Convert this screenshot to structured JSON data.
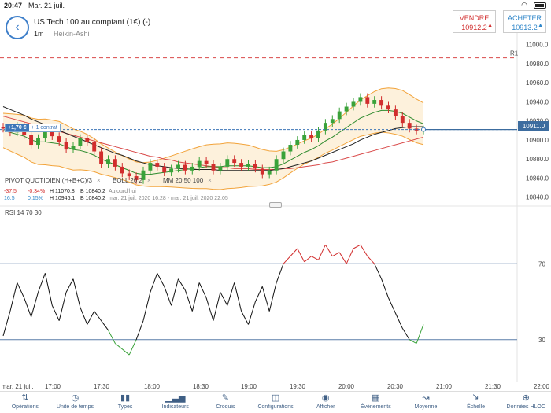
{
  "status": {
    "time": "20:47",
    "date": "Mar. 21 juil."
  },
  "header": {
    "back_icon": "back-arrow-icon",
    "title": "US Tech 100 au comptant (1€) (-)",
    "interval": "1m",
    "chart_type": "Heikin-Ashi",
    "sell": {
      "label": "VENDRE",
      "price": "10912.2"
    },
    "buy": {
      "label": "ACHETER",
      "price": "10913.2"
    }
  },
  "position": {
    "pnl": "+1,70 €",
    "qty": "+ 1 contrat"
  },
  "current_price": "10911.0",
  "r1_label": "R1",
  "indicators": {
    "pivot": "PIVOT  QUOTIDIEN  (H+B+C)/3",
    "boll": "BOLL  20  2",
    "mm": "MM  20  50  100",
    "close": "×"
  },
  "pivot_values": {
    "row1": {
      "chg": "-37.5",
      "pct": "-0.34%",
      "h": "H 11070.8",
      "b": "B 10840.2",
      "period": "Aujourd'hui"
    },
    "row2": {
      "chg": "16.5",
      "pct": "0.15%",
      "h": "H 10946.1",
      "b": "B 10840.2",
      "period": "mar. 21 juil. 2020 16:28 - mar. 21 juil. 2020 22:05"
    }
  },
  "rsi_label": "RSI  14  70  30",
  "colors": {
    "accent": "#3d7ec9",
    "up": "#3aa23a",
    "down": "#d12d2d",
    "ma20": "#2e8b2e",
    "ma50": "#222222",
    "ma100": "#d94a4a",
    "boll": "#f2a33a"
  },
  "chart_data": {
    "type": "candlestick",
    "price_axis": {
      "labels": [
        "11000.0",
        "10980.0",
        "10960.0",
        "10940.0",
        "10920.0",
        "10900.0",
        "10880.0",
        "10860.0",
        "10840.0"
      ],
      "ylim": [
        10834,
        11008
      ]
    },
    "r1_level": 10986,
    "position_level": 10911.0,
    "rsi_axis": {
      "labels": [
        "70",
        "30"
      ],
      "upper": 70,
      "lower": 30,
      "ylim": [
        10,
        95
      ]
    },
    "time_axis": {
      "labels": [
        "mar. 21 juil.",
        "17:00",
        "17:30",
        "18:00",
        "18:30",
        "19:00",
        "19:30",
        "20:00",
        "20:30",
        "21:00",
        "21:30",
        "22:00"
      ]
    },
    "price_series": [
      10912,
      10908,
      10915,
      10905,
      10895,
      10902,
      10910,
      10904,
      10898,
      10890,
      10894,
      10902,
      10898,
      10888,
      10875,
      10880,
      10872,
      10865,
      10862,
      10858,
      10868,
      10876,
      10872,
      10866,
      10870,
      10874,
      10868,
      10872,
      10878,
      10875,
      10868,
      10872,
      10880,
      10876,
      10872,
      10875,
      10870,
      10864,
      10868,
      10880,
      10888,
      10895,
      10900,
      10905,
      10902,
      10910,
      10918,
      10922,
      10930,
      10935,
      10940,
      10945,
      10938,
      10942,
      10936,
      10932,
      10925,
      10918,
      10912,
      10910,
      10911
    ],
    "ma20": [
      10910,
      10908,
      10906,
      10904,
      10900,
      10898,
      10898,
      10897,
      10896,
      10893,
      10890,
      10889,
      10887,
      10884,
      10880,
      10877,
      10874,
      10871,
      10868,
      10865,
      10864,
      10864,
      10865,
      10866,
      10867,
      10868,
      10869,
      10870,
      10871,
      10872,
      10872,
      10872,
      10873,
      10873,
      10873,
      10873,
      10872,
      10871,
      10871,
      10872,
      10875,
      10879,
      10883,
      10887,
      10890,
      10894,
      10899,
      10903,
      10908,
      10913,
      10918,
      10923,
      10926,
      10929,
      10931,
      10931,
      10930,
      10928,
      10924,
      10920,
      10917
    ],
    "ma50": [
      10935,
      10932,
      10929,
      10926,
      10922,
      10919,
      10916,
      10913,
      10910,
      10907,
      10904,
      10901,
      10898,
      10895,
      10892,
      10889,
      10886,
      10884,
      10881,
      10878,
      10876,
      10874,
      10873,
      10872,
      10871,
      10870,
      10870,
      10869,
      10869,
      10869,
      10869,
      10868,
      10868,
      10868,
      10868,
      10868,
      10868,
      10868,
      10868,
      10869,
      10870,
      10872,
      10874,
      10876,
      10878,
      10881,
      10884,
      10887,
      10890,
      10893,
      10896,
      10900,
      10903,
      10906,
      10908,
      10910,
      10912,
      10913,
      10914,
      10914,
      10914
    ],
    "ma100": [
      10925,
      10923,
      10921,
      10919,
      10917,
      10915,
      10913,
      10911,
      10909,
      10907,
      10905,
      10903,
      10901,
      10899,
      10897,
      10895,
      10893,
      10891,
      10889,
      10887,
      10885,
      10883,
      10882,
      10880,
      10879,
      10877,
      10876,
      10875,
      10874,
      10873,
      10872,
      10871,
      10871,
      10870,
      10870,
      10870,
      10869,
      10869,
      10869,
      10869,
      10870,
      10870,
      10871,
      10872,
      10873,
      10874,
      10876,
      10877,
      10879,
      10881,
      10883,
      10885,
      10887,
      10889,
      10891,
      10893,
      10895,
      10897,
      10899,
      10901,
      10903
    ],
    "rsi_series": [
      32,
      45,
      60,
      52,
      42,
      55,
      65,
      48,
      40,
      55,
      62,
      47,
      38,
      45,
      40,
      35,
      28,
      25,
      22,
      30,
      40,
      55,
      65,
      58,
      48,
      62,
      56,
      45,
      60,
      52,
      40,
      55,
      48,
      60,
      45,
      38,
      50,
      58,
      45,
      60,
      70,
      74,
      78,
      71,
      74,
      72,
      80,
      74,
      76,
      70,
      78,
      80,
      74,
      70,
      62,
      52,
      44,
      36,
      30,
      28,
      38
    ]
  },
  "toolbar": [
    {
      "label": "Opérations",
      "icon": "arrows-updown-icon"
    },
    {
      "label": "Unité de temps",
      "icon": "clock-icon"
    },
    {
      "label": "Types",
      "icon": "candles-icon"
    },
    {
      "label": "Indicateurs",
      "icon": "bars-icon"
    },
    {
      "label": "Croquis",
      "icon": "pencil-icon"
    },
    {
      "label": "Configurations",
      "icon": "layout-icon"
    },
    {
      "label": "Afficher",
      "icon": "eye-icon"
    },
    {
      "label": "Événements",
      "icon": "calendar-icon"
    },
    {
      "label": "Moyenne",
      "icon": "average-icon"
    },
    {
      "label": "Échelle",
      "icon": "scale-icon"
    },
    {
      "label": "Données HLOC",
      "icon": "crosshair-icon"
    }
  ]
}
